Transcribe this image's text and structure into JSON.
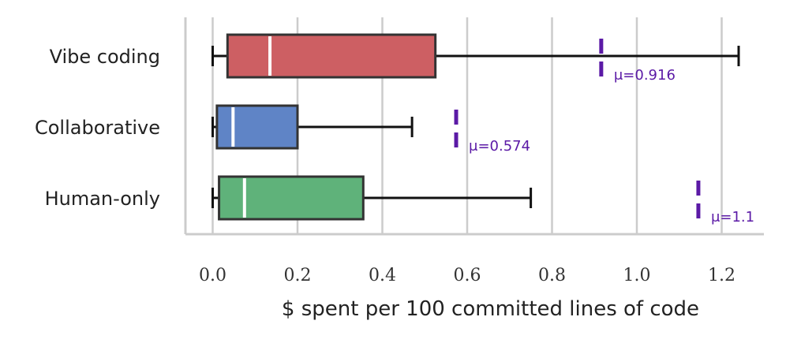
{
  "chart_data": {
    "type": "box",
    "orientation": "horizontal",
    "xlabel": "$ spent per 100 committed lines of code",
    "xlim": [
      -0.065,
      1.3
    ],
    "xticks": [
      "0.0",
      "0.2",
      "0.4",
      "0.6",
      "0.8",
      "1.0",
      "1.2"
    ],
    "grid": "vertical",
    "series": [
      {
        "name": "Vibe coding",
        "color": "#cd5f63",
        "whisker_low": 0.0,
        "q1": 0.035,
        "median": 0.135,
        "q3": 0.525,
        "whisker_high": 1.24,
        "mean": 0.916,
        "mean_label": "μ=0.916"
      },
      {
        "name": "Collaborative",
        "color": "#5f84c6",
        "whisker_low": 0.0,
        "q1": 0.01,
        "median": 0.048,
        "q3": 0.2,
        "whisker_high": 0.47,
        "mean": 0.574,
        "mean_label": "μ=0.574"
      },
      {
        "name": "Human-only",
        "color": "#5fb27a",
        "whisker_low": 0.0,
        "q1": 0.015,
        "median": 0.075,
        "q3": 0.355,
        "whisker_high": 0.75,
        "mean": 1.145,
        "mean_label": "μ=1.1"
      }
    ],
    "mean_marker_color": "#5b1aa6"
  }
}
